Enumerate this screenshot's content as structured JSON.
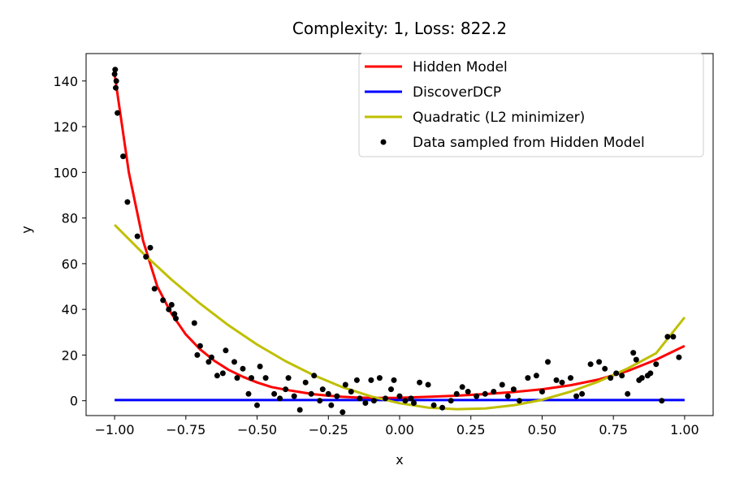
{
  "chart_data": {
    "type": "line",
    "title": "Complexity: 1, Loss: 822.2",
    "xlabel": "x",
    "ylabel": "y",
    "xlim": [
      -1.1,
      1.1
    ],
    "ylim": [
      -6.5,
      152
    ],
    "x_ticks": [
      -1.0,
      -0.75,
      -0.5,
      -0.25,
      0.0,
      0.25,
      0.5,
      0.75,
      1.0
    ],
    "x_tick_labels": [
      "−1.00",
      "−0.75",
      "−0.50",
      "−0.25",
      "0.00",
      "0.25",
      "0.50",
      "0.75",
      "1.00"
    ],
    "y_ticks": [
      0,
      20,
      40,
      60,
      80,
      100,
      120,
      140
    ],
    "y_tick_labels": [
      "0",
      "20",
      "40",
      "60",
      "80",
      "100",
      "120",
      "140"
    ],
    "grid": false,
    "legend": "top-right",
    "series": [
      {
        "name": "Hidden Model",
        "kind": "line",
        "color": "#ff0000",
        "x": [
          -1.0,
          -0.95,
          -0.9,
          -0.85,
          -0.8,
          -0.75,
          -0.7,
          -0.65,
          -0.6,
          -0.55,
          -0.5,
          -0.45,
          -0.4,
          -0.35,
          -0.3,
          -0.25,
          -0.2,
          -0.15,
          -0.1,
          -0.05,
          0.0,
          0.1,
          0.2,
          0.3,
          0.4,
          0.5,
          0.6,
          0.7,
          0.8,
          0.85,
          0.9,
          0.95,
          1.0
        ],
        "y": [
          143,
          100,
          70,
          50,
          38,
          29,
          22.5,
          17.5,
          13.5,
          10.5,
          8,
          6,
          4.8,
          3.8,
          2.8,
          2.2,
          1.7,
          1.4,
          1.2,
          1.2,
          1.3,
          1.7,
          2.2,
          2.9,
          3.8,
          5,
          6.8,
          9.3,
          13,
          15.5,
          18,
          21,
          24
        ]
      },
      {
        "name": "DiscoverDCP",
        "kind": "line",
        "color": "#0000ff",
        "x": [
          -1.0,
          1.0
        ],
        "y": [
          0.3,
          0.3
        ]
      },
      {
        "name": "Quadratic (L2 minimizer)",
        "kind": "line",
        "color": "#bfbf00",
        "x": [
          -1.0,
          -0.9,
          -0.8,
          -0.7,
          -0.6,
          -0.5,
          -0.4,
          -0.3,
          -0.2,
          -0.1,
          0.0,
          0.1,
          0.2,
          0.3,
          0.4,
          0.5,
          0.6,
          0.7,
          0.8,
          0.9,
          1.0
        ],
        "y": [
          77,
          64.5,
          53,
          42.5,
          33,
          24.6,
          17.3,
          11.1,
          5.9,
          1.9,
          -1.1,
          -3,
          -3.7,
          -3.4,
          -2,
          0.4,
          4,
          8.5,
          14.1,
          20.8,
          36.5
        ]
      },
      {
        "name": "Data sampled from Hidden Model",
        "kind": "scatter",
        "color": "#000000",
        "x": [
          -1.0,
          -0.998,
          -0.996,
          -0.994,
          -0.99,
          -0.97,
          -0.955,
          -0.92,
          -0.89,
          -0.875,
          -0.86,
          -0.83,
          -0.81,
          -0.8,
          -0.79,
          -0.785,
          -0.72,
          -0.71,
          -0.7,
          -0.67,
          -0.66,
          -0.64,
          -0.62,
          -0.61,
          -0.58,
          -0.57,
          -0.55,
          -0.53,
          -0.52,
          -0.5,
          -0.49,
          -0.47,
          -0.44,
          -0.42,
          -0.4,
          -0.39,
          -0.37,
          -0.35,
          -0.33,
          -0.31,
          -0.3,
          -0.28,
          -0.27,
          -0.25,
          -0.24,
          -0.22,
          -0.2,
          -0.19,
          -0.17,
          -0.15,
          -0.14,
          -0.12,
          -0.1,
          -0.09,
          -0.07,
          -0.05,
          -0.03,
          -0.02,
          0.0,
          0.02,
          0.04,
          0.05,
          0.07,
          0.1,
          0.12,
          0.15,
          0.18,
          0.2,
          0.22,
          0.24,
          0.27,
          0.3,
          0.33,
          0.36,
          0.38,
          0.4,
          0.42,
          0.45,
          0.48,
          0.5,
          0.52,
          0.55,
          0.57,
          0.6,
          0.62,
          0.64,
          0.67,
          0.7,
          0.72,
          0.74,
          0.76,
          0.78,
          0.8,
          0.82,
          0.83,
          0.84,
          0.85,
          0.87,
          0.88,
          0.9,
          0.92,
          0.94,
          0.96,
          0.98
        ],
        "y": [
          143,
          145,
          137,
          140,
          126,
          107,
          87,
          72,
          63,
          67,
          49,
          44,
          40,
          42,
          38,
          36,
          34,
          20,
          24,
          17,
          19,
          11,
          12,
          22,
          17,
          10,
          14,
          3,
          10,
          -2,
          15,
          10,
          3,
          1,
          5,
          10,
          2,
          -4,
          8,
          3,
          11,
          0,
          5,
          3,
          -2,
          2,
          -5,
          7,
          4,
          9,
          1,
          -1,
          9,
          0,
          10,
          1,
          5,
          9,
          2,
          0,
          1,
          -1,
          8,
          7,
          -2,
          -3,
          0,
          3,
          6,
          4,
          2,
          3,
          4,
          7,
          2,
          5,
          0,
          10,
          11,
          4,
          17,
          9,
          8,
          10,
          2,
          3,
          16,
          17,
          14,
          10,
          12,
          11,
          3,
          21,
          18,
          9,
          10,
          11,
          12,
          16,
          0,
          28,
          28,
          19
        ]
      }
    ]
  }
}
